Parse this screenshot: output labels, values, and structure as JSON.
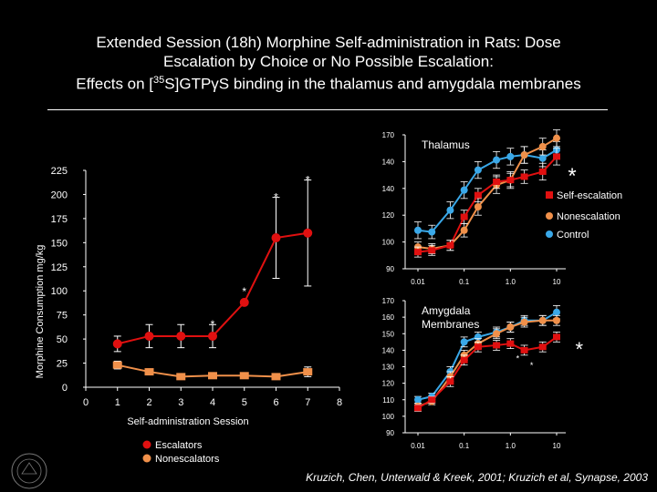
{
  "title": {
    "line1": "Extended Session (18h) Morphine Self-administration in Rats: Dose",
    "line2": "Escalation by Choice or No Possible Escalation:",
    "line3_pre": "Effects on [",
    "line3_sup": "35",
    "line3_post": "S]GTPγS binding in the thalamus and amygdala membranes"
  },
  "citation": "Kruzich, Chen, Unterwald & Kreek, 2001; Kruzich et al, Synapse, 2003",
  "colors": {
    "escalators": "#e01010",
    "nonescalators": "#f0904a",
    "control": "#3aa8e8",
    "background": "#000000"
  },
  "chart_data": [
    {
      "type": "line",
      "xlabel": "Self-administration Session",
      "ylabel": "Morphine Consumption mg/kg",
      "xlim": [
        0,
        8
      ],
      "ylim": [
        0,
        225
      ],
      "x_ticks": [
        "0",
        "1",
        "2",
        "3",
        "4",
        "5",
        "6",
        "7",
        "8"
      ],
      "y_ticks": [
        "0",
        "25",
        "50",
        "75",
        "100",
        "125",
        "150",
        "175",
        "200",
        "225"
      ],
      "series": [
        {
          "name": "Escalators",
          "color": "#e01010",
          "x": [
            1,
            2,
            3,
            4,
            5,
            6,
            7
          ],
          "y": [
            45,
            53,
            53,
            53,
            88,
            155,
            160
          ],
          "err": [
            8,
            12,
            12,
            12,
            0,
            42,
            55
          ]
        },
        {
          "name": "Nonescalators",
          "color": "#f0904a",
          "x": [
            1,
            2,
            3,
            4,
            5,
            6,
            7
          ],
          "y": [
            23,
            16,
            11,
            12,
            12,
            11,
            16
          ],
          "err": [
            4,
            3,
            2,
            3,
            3,
            3,
            5
          ]
        }
      ],
      "significance": [
        {
          "x": 4,
          "label": "*"
        },
        {
          "x": 5,
          "label": "*"
        },
        {
          "x": 6,
          "label": "*"
        },
        {
          "x": 7,
          "label": "*"
        }
      ],
      "legend": {
        "placement": "bottom-left"
      }
    },
    {
      "type": "line",
      "title": "Thalamus",
      "x_ticks": [
        "0.01",
        "0.1",
        "1.0",
        "10"
      ],
      "y_ticks": [
        "90",
        "100",
        "120",
        "140",
        "140",
        "170"
      ],
      "x": [
        0.01,
        0.02,
        0.05,
        0.1,
        0.2,
        0.5,
        1,
        2,
        5,
        10
      ],
      "ylim": [
        90,
        170
      ],
      "series": [
        {
          "name": "Self-escalation",
          "color": "#e01010",
          "y": [
            100,
            101,
            104,
            121,
            134,
            142,
            143,
            145,
            148,
            157
          ],
          "err": [
            3,
            3,
            3,
            4,
            4,
            4,
            4,
            4,
            5,
            5
          ]
        },
        {
          "name": "Nonescalation",
          "color": "#f0904a",
          "y": [
            103,
            102,
            104,
            113,
            127,
            140,
            143,
            158,
            163,
            168
          ],
          "err": [
            3,
            3,
            3,
            4,
            5,
            5,
            5,
            5,
            5,
            5
          ]
        },
        {
          "name": "Control",
          "color": "#3aa8e8",
          "y": [
            113,
            112,
            125,
            137,
            149,
            155,
            157,
            158,
            156,
            161
          ],
          "err": [
            5,
            4,
            5,
            5,
            5,
            5,
            5,
            5,
            5,
            5
          ]
        }
      ],
      "significance": [
        {
          "label": "*"
        }
      ],
      "legend": {
        "placement": "right"
      }
    },
    {
      "type": "line",
      "title": "Amygdala Membranes",
      "x_ticks": [
        "0.01",
        "0.1",
        "1.0",
        "10"
      ],
      "y_ticks": [
        "90",
        "100",
        "110",
        "120",
        "130",
        "140",
        "150",
        "160",
        "170"
      ],
      "x": [
        0.01,
        0.02,
        0.05,
        0.1,
        0.2,
        0.5,
        1,
        2,
        5,
        10
      ],
      "ylim": [
        90,
        170
      ],
      "series": [
        {
          "name": "Self-escalation",
          "color": "#e01010",
          "y": [
            105,
            110,
            121,
            134,
            142,
            143,
            144,
            140,
            142,
            148
          ],
          "err": [
            2,
            2,
            3,
            3,
            3,
            3,
            3,
            3,
            3,
            3
          ]
        },
        {
          "name": "Nonescalation",
          "color": "#f0904a",
          "y": [
            106,
            109,
            124,
            137,
            144,
            150,
            154,
            157,
            158,
            158
          ],
          "err": [
            2,
            2,
            3,
            3,
            3,
            3,
            3,
            3,
            3,
            3
          ]
        },
        {
          "name": "Control",
          "color": "#3aa8e8",
          "y": [
            110,
            112,
            127,
            145,
            148,
            151,
            154,
            158,
            158,
            163
          ],
          "err": [
            2,
            2,
            3,
            3,
            3,
            3,
            3,
            3,
            3,
            4
          ]
        }
      ],
      "significance": [
        {
          "x": 1,
          "label": "*"
        },
        {
          "x": 2,
          "label": "*"
        },
        {
          "x": 5,
          "label": "*"
        }
      ]
    }
  ]
}
